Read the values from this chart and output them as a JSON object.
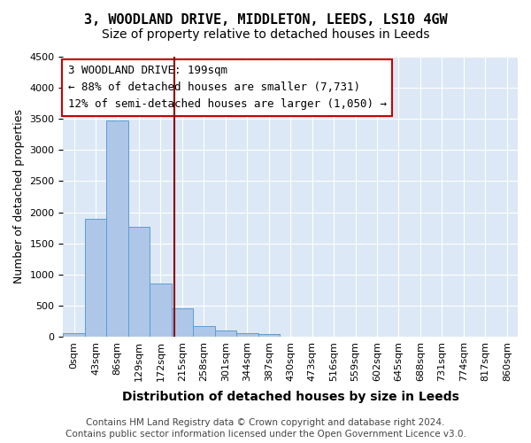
{
  "title": "3, WOODLAND DRIVE, MIDDLETON, LEEDS, LS10 4GW",
  "subtitle": "Size of property relative to detached houses in Leeds",
  "xlabel": "Distribution of detached houses by size in Leeds",
  "ylabel": "Number of detached properties",
  "bar_labels": [
    "0sqm",
    "43sqm",
    "86sqm",
    "129sqm",
    "172sqm",
    "215sqm",
    "258sqm",
    "301sqm",
    "344sqm",
    "387sqm",
    "430sqm",
    "473sqm",
    "516sqm",
    "559sqm",
    "602sqm",
    "645sqm",
    "688sqm",
    "731sqm",
    "774sqm",
    "817sqm",
    "860sqm"
  ],
  "bar_values": [
    50,
    1900,
    3480,
    1760,
    850,
    450,
    175,
    100,
    60,
    40,
    0,
    0,
    0,
    0,
    0,
    0,
    0,
    0,
    0,
    0,
    0
  ],
  "bar_color": "#aec6e8",
  "bar_edge_color": "#5a9fd4",
  "vline_x": 4.65,
  "vline_color": "#8b0000",
  "ylim": [
    0,
    4500
  ],
  "yticks": [
    0,
    500,
    1000,
    1500,
    2000,
    2500,
    3000,
    3500,
    4000,
    4500
  ],
  "annotation_text": "3 WOODLAND DRIVE: 199sqm\n← 88% of detached houses are smaller (7,731)\n12% of semi-detached houses are larger (1,050) →",
  "annotation_box_color": "#ffffff",
  "annotation_box_edge_color": "#cc0000",
  "bg_color": "#dce8f5",
  "footnote": "Contains HM Land Registry data © Crown copyright and database right 2024.\nContains public sector information licensed under the Open Government Licence v3.0.",
  "title_fontsize": 11,
  "subtitle_fontsize": 10,
  "xlabel_fontsize": 10,
  "ylabel_fontsize": 9,
  "tick_fontsize": 8,
  "annot_fontsize": 9,
  "footnote_fontsize": 7.5
}
